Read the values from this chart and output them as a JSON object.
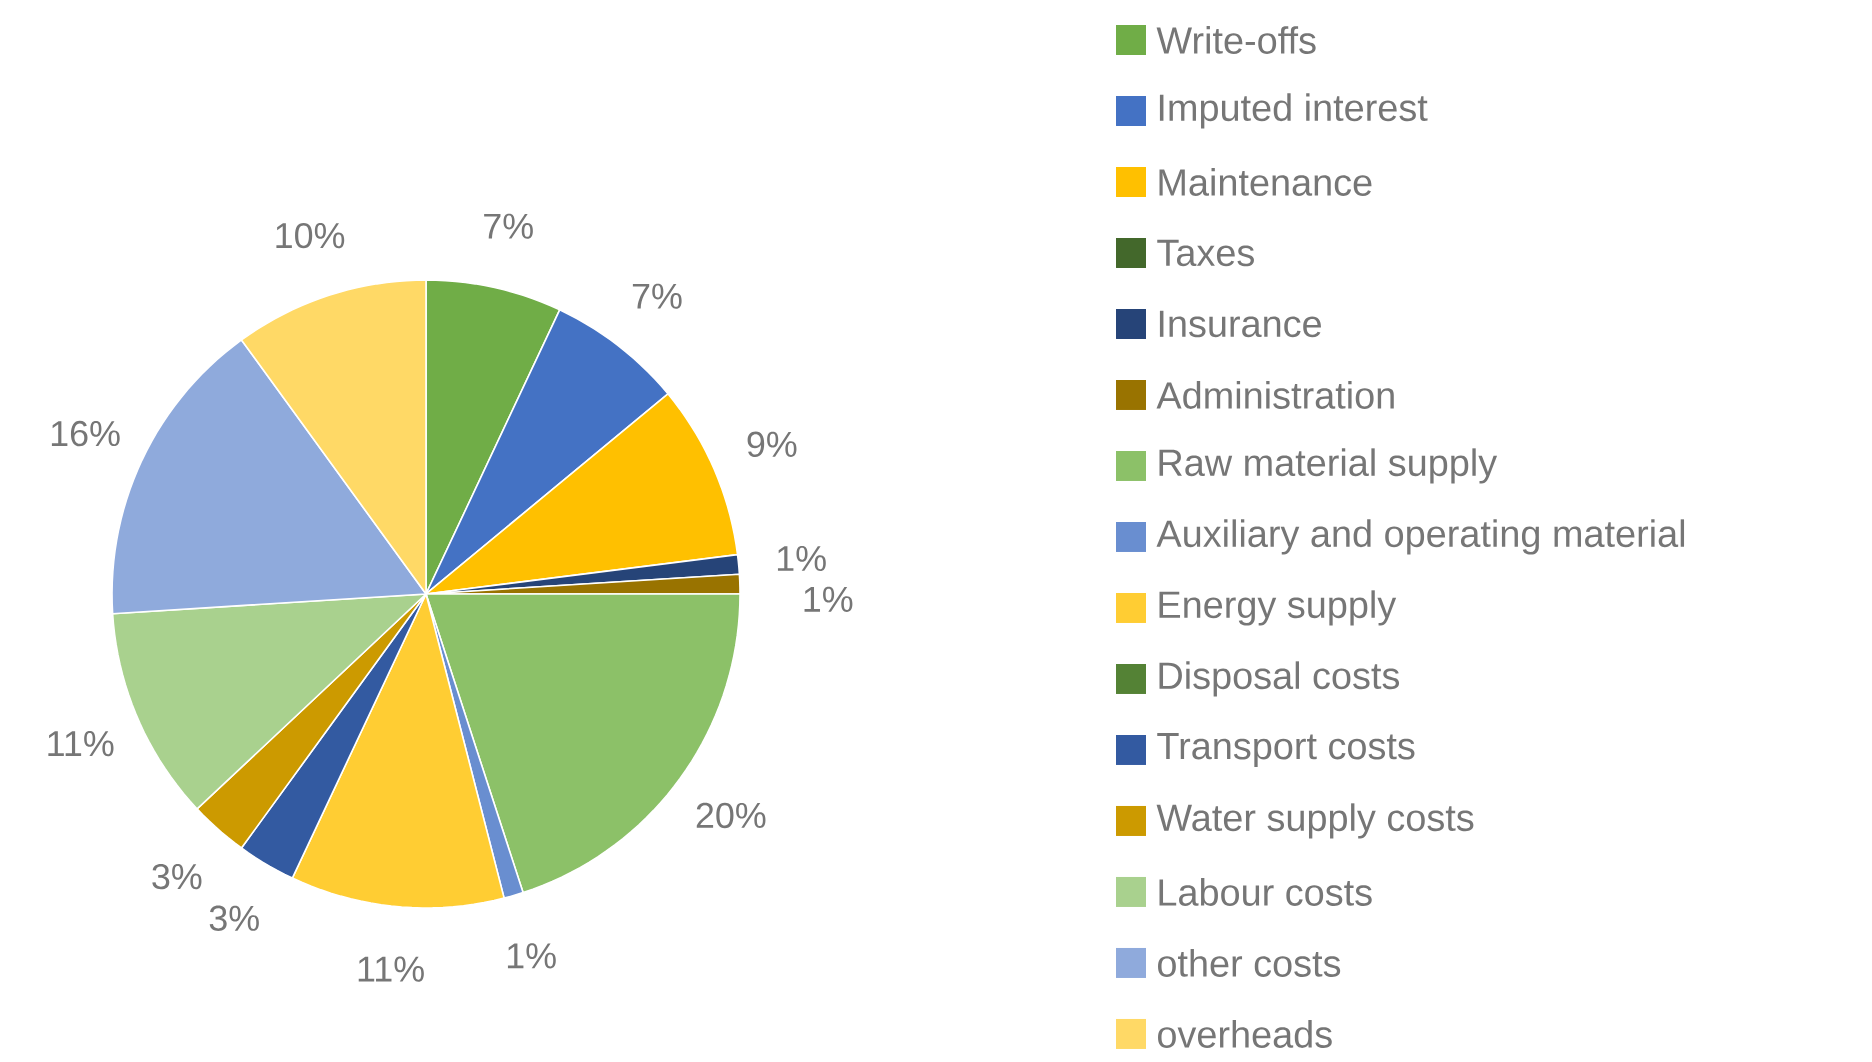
{
  "chart_data": {
    "type": "pie",
    "categories": [
      "Write-offs",
      "Imputed interest",
      "Maintenance",
      "Taxes",
      "Insurance",
      "Administration",
      "Raw material supply",
      "Auxiliary and operating material",
      "Energy supply",
      "Disposal costs",
      "Transport costs",
      "Water supply costs",
      "Labour costs",
      "other costs",
      "overheads"
    ],
    "values": [
      7,
      7,
      9,
      0,
      1,
      1,
      20,
      1,
      11,
      0,
      3,
      3,
      11,
      16,
      10
    ],
    "value_labels": [
      "7%",
      "7%",
      "9%",
      null,
      "1%",
      "1%",
      "20%",
      "1%",
      "11%",
      null,
      "3%",
      "3%",
      "11%",
      "16%",
      "10%"
    ],
    "colors": [
      "#70ad47",
      "#4472c4",
      "#ffc000",
      "#43682b",
      "#264478",
      "#997300",
      "#8cc168",
      "#698ed0",
      "#ffcd33",
      "#548235",
      "#335aa1",
      "#cc9a00",
      "#a9d18e",
      "#8faadc",
      "#ffd966"
    ],
    "legend": "right"
  }
}
